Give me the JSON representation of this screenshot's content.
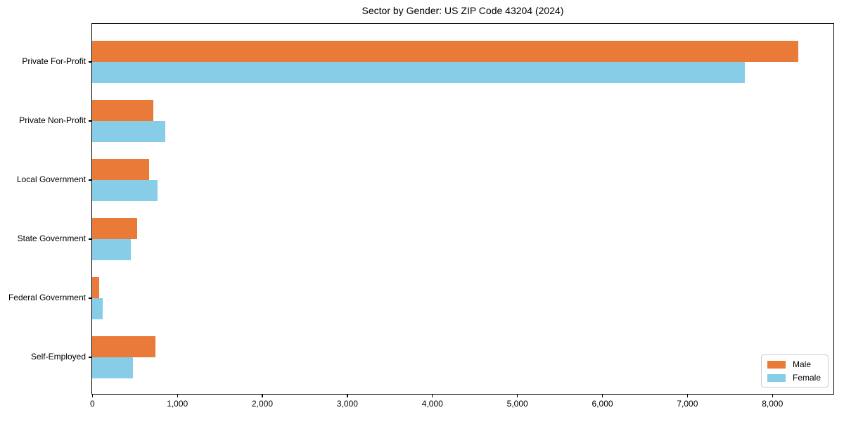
{
  "chart_data": {
    "type": "bar",
    "orientation": "horizontal",
    "title": "Sector by Gender: US ZIP Code 43204 (2024)",
    "categories": [
      "Private For-Profit",
      "Private Non-Profit",
      "Local Government",
      "State Government",
      "Federal Government",
      "Self-Employed"
    ],
    "series": [
      {
        "name": "Male",
        "color": "#E97A38",
        "values": [
          8300,
          720,
          670,
          525,
          80,
          740
        ]
      },
      {
        "name": "Female",
        "color": "#87CDE8",
        "values": [
          7675,
          855,
          765,
          455,
          120,
          475
        ]
      }
    ],
    "xlabel": "",
    "ylabel": "",
    "xlim": [
      0,
      8715
    ],
    "x_ticks": [
      0,
      1000,
      2000,
      3000,
      4000,
      5000,
      6000,
      7000,
      8000
    ],
    "x_tick_labels": [
      "0",
      "1,000",
      "2,000",
      "3,000",
      "4,000",
      "5,000",
      "6,000",
      "7,000",
      "8,000"
    ],
    "grid": false,
    "legend": {
      "position": "lower right",
      "entries": [
        "Male",
        "Female"
      ]
    },
    "colors": {
      "axis": "#000000",
      "background": "#ffffff",
      "legend_border": "#cccccc"
    }
  }
}
